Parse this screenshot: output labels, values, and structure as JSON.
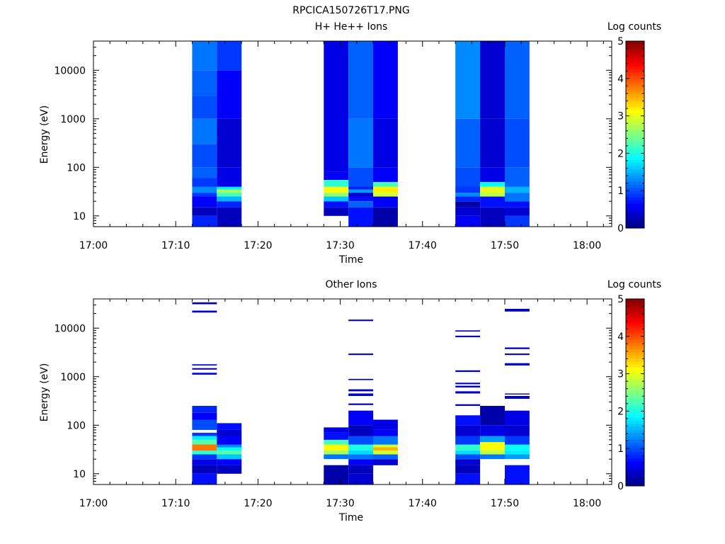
{
  "title": "RPCICA150726T17.PNG",
  "colors": {
    "background": "#ffffff",
    "axis": "#000000"
  },
  "colorbar": {
    "label": "Log counts",
    "ticks": [
      "0",
      "1",
      "2",
      "3",
      "4",
      "5"
    ],
    "range": [
      0,
      5
    ],
    "colormap": "jet"
  },
  "panels": [
    {
      "title": "H+ He++ Ions",
      "ylabel": "Energy (eV)",
      "xlabel": "Time",
      "yticks": [
        "10",
        "100",
        "1000",
        "10000"
      ],
      "xticks": [
        "17:00",
        "17:10",
        "17:20",
        "17:30",
        "17:40",
        "17:50",
        "18:00"
      ]
    },
    {
      "title": "Other Ions",
      "ylabel": "Energy (eV)",
      "xlabel": "Time",
      "yticks": [
        "10",
        "100",
        "1000",
        "10000"
      ],
      "xticks": [
        "17:00",
        "17:10",
        "17:20",
        "17:30",
        "17:40",
        "17:50",
        "18:00"
      ]
    }
  ],
  "chart_data": [
    {
      "type": "heatmap",
      "title": "H+ He++ Ions",
      "xlabel": "Time",
      "ylabel": "Energy (eV)",
      "yscale": "log",
      "xlim": [
        "17:00",
        "18:03"
      ],
      "ylim": [
        6,
        40000
      ],
      "zlabel": "Log counts",
      "zlim": [
        0,
        5
      ],
      "columns": [
        {
          "t_start": "17:12",
          "t_end": "17:15",
          "cells": [
            [
              6,
              10,
              0.8
            ],
            [
              10,
              15,
              0.3
            ],
            [
              15,
              25,
              0.6
            ],
            [
              25,
              30,
              0.9
            ],
            [
              30,
              40,
              1.3
            ],
            [
              40,
              60,
              0.9
            ],
            [
              60,
              100,
              1.1
            ],
            [
              100,
              300,
              1.0
            ],
            [
              300,
              1000,
              1.2
            ],
            [
              1000,
              3000,
              1.0
            ],
            [
              3000,
              10000,
              1.1
            ],
            [
              10000,
              40000,
              1.2
            ]
          ]
        },
        {
          "t_start": "17:15",
          "t_end": "17:18",
          "cells": [
            [
              6,
              15,
              0.3
            ],
            [
              15,
              20,
              0.8
            ],
            [
              20,
              25,
              1.5
            ],
            [
              25,
              30,
              2.2
            ],
            [
              30,
              35,
              2.7
            ],
            [
              35,
              40,
              1.8
            ],
            [
              40,
              100,
              0.5
            ],
            [
              100,
              1000,
              0.4
            ],
            [
              1000,
              10000,
              0.6
            ],
            [
              10000,
              40000,
              0.9
            ]
          ]
        },
        {
          "t_start": "17:28",
          "t_end": "17:31",
          "cells": [
            [
              10,
              15,
              0.3
            ],
            [
              15,
              20,
              0.7
            ],
            [
              20,
              25,
              1.6
            ],
            [
              25,
              30,
              2.6
            ],
            [
              30,
              40,
              3.1
            ],
            [
              40,
              55,
              2.1
            ],
            [
              55,
              80,
              0.6
            ],
            [
              80,
              40000,
              0.5
            ]
          ]
        },
        {
          "t_start": "17:31",
          "t_end": "17:34",
          "cells": [
            [
              6,
              15,
              0.7
            ],
            [
              15,
              20,
              1.1
            ],
            [
              20,
              25,
              0.7
            ],
            [
              25,
              30,
              0.4
            ],
            [
              30,
              35,
              1.4
            ],
            [
              35,
              40,
              0.8
            ],
            [
              40,
              100,
              1.0
            ],
            [
              100,
              1000,
              1.2
            ],
            [
              1000,
              40000,
              1.1
            ]
          ]
        },
        {
          "t_start": "17:34",
          "t_end": "17:37",
          "cells": [
            [
              6,
              15,
              0.2
            ],
            [
              15,
              25,
              0.6
            ],
            [
              25,
              30,
              2.9
            ],
            [
              30,
              40,
              3.2
            ],
            [
              40,
              50,
              2.2
            ],
            [
              50,
              100,
              0.6
            ],
            [
              100,
              1000,
              0.5
            ],
            [
              1000,
              40000,
              0.6
            ]
          ]
        },
        {
          "t_start": "17:44",
          "t_end": "17:47",
          "cells": [
            [
              6,
              10,
              0.6
            ],
            [
              10,
              15,
              0.4
            ],
            [
              15,
              20,
              0.2
            ],
            [
              20,
              25,
              0.8
            ],
            [
              25,
              30,
              1.3
            ],
            [
              30,
              40,
              0.9
            ],
            [
              40,
              100,
              1.0
            ],
            [
              100,
              1000,
              1.1
            ],
            [
              1000,
              40000,
              1.3
            ]
          ]
        },
        {
          "t_start": "17:47",
          "t_end": "17:50",
          "cells": [
            [
              6,
              15,
              0.3
            ],
            [
              15,
              25,
              0.7
            ],
            [
              25,
              30,
              2.8
            ],
            [
              30,
              40,
              3.0
            ],
            [
              40,
              50,
              1.9
            ],
            [
              50,
              100,
              0.5
            ],
            [
              100,
              1000,
              0.4
            ],
            [
              1000,
              40000,
              0.4
            ]
          ]
        },
        {
          "t_start": "17:50",
          "t_end": "17:53",
          "cells": [
            [
              6,
              10,
              0.9
            ],
            [
              10,
              15,
              0.4
            ],
            [
              15,
              20,
              0.7
            ],
            [
              20,
              30,
              1.2
            ],
            [
              30,
              40,
              1.5
            ],
            [
              40,
              100,
              1.1
            ],
            [
              100,
              1000,
              1.0
            ],
            [
              1000,
              40000,
              1.1
            ]
          ]
        }
      ]
    },
    {
      "type": "heatmap",
      "title": "Other Ions",
      "xlabel": "Time",
      "ylabel": "Energy (eV)",
      "yscale": "log",
      "xlim": [
        "17:00",
        "18:03"
      ],
      "ylim": [
        6,
        40000
      ],
      "zlabel": "Log counts",
      "zlim": [
        0,
        5
      ],
      "columns": [
        {
          "t_start": "17:12",
          "t_end": "17:15",
          "cells": [
            [
              6,
              10,
              0.7
            ],
            [
              10,
              15,
              0.3
            ],
            [
              15,
              20,
              0.5
            ],
            [
              20,
              25,
              0.9
            ],
            [
              25,
              30,
              2.1
            ],
            [
              30,
              40,
              3.8
            ],
            [
              40,
              50,
              2.3
            ],
            [
              50,
              60,
              1.8
            ],
            [
              60,
              70,
              0.9
            ],
            [
              80,
              130,
              1.0
            ],
            [
              130,
              180,
              0.6
            ],
            [
              180,
              250,
              0.8
            ],
            [
              1100,
              1200,
              0.5
            ],
            [
              1400,
              1500,
              0.4
            ],
            [
              1700,
              1800,
              0.5
            ],
            [
              21000,
              23000,
              0.4
            ],
            [
              31000,
              34000,
              0.3
            ]
          ]
        },
        {
          "t_start": "17:15",
          "t_end": "17:18",
          "cells": [
            [
              10,
              15,
              0.3
            ],
            [
              15,
              20,
              0.6
            ],
            [
              20,
              25,
              1.6
            ],
            [
              25,
              30,
              2.3
            ],
            [
              30,
              35,
              1.9
            ],
            [
              35,
              40,
              1.3
            ],
            [
              40,
              60,
              0.6
            ],
            [
              60,
              80,
              0.4
            ],
            [
              80,
              110,
              0.7
            ]
          ]
        },
        {
          "t_start": "17:28",
          "t_end": "17:31",
          "cells": [
            [
              6,
              15,
              0.2
            ],
            [
              20,
              25,
              1.2
            ],
            [
              25,
              30,
              2.7
            ],
            [
              30,
              40,
              3.1
            ],
            [
              40,
              50,
              2.2
            ],
            [
              50,
              70,
              0.7
            ],
            [
              70,
              90,
              0.5
            ]
          ]
        },
        {
          "t_start": "17:31",
          "t_end": "17:34",
          "cells": [
            [
              6,
              10,
              0.4
            ],
            [
              10,
              15,
              0.3
            ],
            [
              15,
              20,
              0.6
            ],
            [
              20,
              25,
              1.2
            ],
            [
              25,
              30,
              1.7
            ],
            [
              30,
              40,
              2.0
            ],
            [
              40,
              60,
              1.0
            ],
            [
              60,
              100,
              0.3
            ],
            [
              100,
              200,
              0.6
            ],
            [
              260,
              280,
              0.4
            ],
            [
              400,
              450,
              0.4
            ],
            [
              500,
              550,
              0.3
            ],
            [
              850,
              900,
              0.4
            ],
            [
              2800,
              3000,
              0.4
            ],
            [
              14000,
              15000,
              0.3
            ]
          ]
        },
        {
          "t_start": "17:34",
          "t_end": "17:37",
          "cells": [
            [
              15,
              20,
              0.4
            ],
            [
              20,
              25,
              1.1
            ],
            [
              25,
              30,
              2.9
            ],
            [
              30,
              35,
              3.5
            ],
            [
              35,
              40,
              2.9
            ],
            [
              40,
              60,
              1.2
            ],
            [
              60,
              80,
              0.6
            ],
            [
              80,
              130,
              0.5
            ]
          ]
        },
        {
          "t_start": "17:44",
          "t_end": "17:47",
          "cells": [
            [
              6,
              10,
              0.7
            ],
            [
              10,
              15,
              0.3
            ],
            [
              15,
              20,
              0.4
            ],
            [
              20,
              25,
              1.0
            ],
            [
              25,
              30,
              1.7
            ],
            [
              30,
              40,
              2.1
            ],
            [
              40,
              60,
              0.9
            ],
            [
              60,
              100,
              0.4
            ],
            [
              100,
              160,
              0.7
            ],
            [
              250,
              270,
              0.4
            ],
            [
              450,
              500,
              0.3
            ],
            [
              600,
              650,
              0.4
            ],
            [
              700,
              750,
              0.3
            ],
            [
              1250,
              1350,
              0.4
            ],
            [
              6500,
              7000,
              0.4
            ],
            [
              8500,
              9000,
              0.3
            ]
          ]
        },
        {
          "t_start": "17:47",
          "t_end": "17:50",
          "cells": [
            [
              20,
              25,
              1.2
            ],
            [
              25,
              30,
              2.8
            ],
            [
              30,
              45,
              3.1
            ],
            [
              45,
              60,
              1.4
            ],
            [
              60,
              100,
              0.5
            ],
            [
              100,
              250,
              0.2
            ]
          ]
        },
        {
          "t_start": "17:50",
          "t_end": "17:53",
          "cells": [
            [
              6,
              15,
              0.7
            ],
            [
              20,
              25,
              1.4
            ],
            [
              25,
              30,
              1.8
            ],
            [
              30,
              40,
              1.9
            ],
            [
              40,
              60,
              0.9
            ],
            [
              60,
              100,
              0.4
            ],
            [
              100,
              200,
              0.5
            ],
            [
              350,
              400,
              0.4
            ],
            [
              430,
              450,
              0.3
            ],
            [
              1700,
              1900,
              0.4
            ],
            [
              2800,
              3000,
              0.3
            ],
            [
              3700,
              4000,
              0.4
            ],
            [
              22000,
              25000,
              0.3
            ]
          ]
        }
      ]
    }
  ]
}
